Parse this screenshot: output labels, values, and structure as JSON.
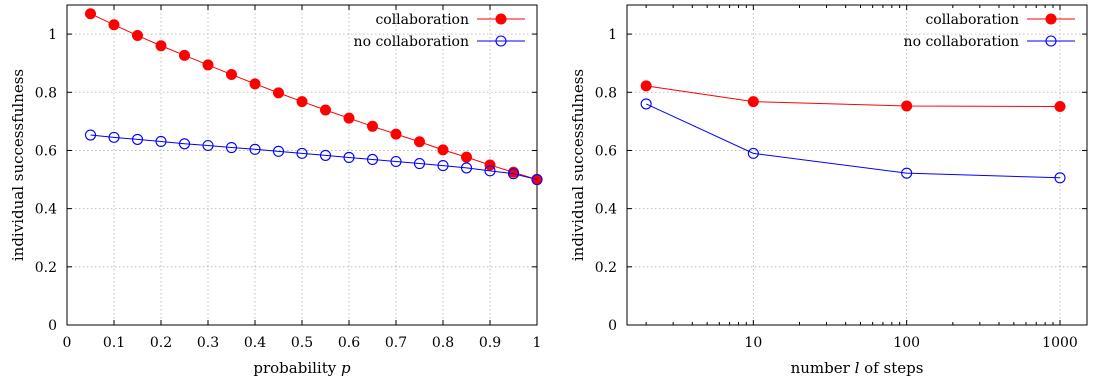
{
  "colors": {
    "collaboration": "#ff0000",
    "no_collaboration": "#0000ff"
  },
  "chart_data": [
    {
      "type": "line",
      "xlabel_prefix": "probability ",
      "xlabel_var": "p",
      "xlabel_suffix": "",
      "ylabel": "individual successfulness",
      "xscale": "linear",
      "xlim": [
        0,
        1
      ],
      "ylim": [
        0,
        1.1
      ],
      "xticks": [
        0,
        0.1,
        0.2,
        0.3,
        0.4,
        0.5,
        0.6,
        0.7,
        0.8,
        0.9,
        1
      ],
      "xtick_labels": [
        "0",
        "0.1",
        "0.2",
        "0.3",
        "0.4",
        "0.5",
        "0.6",
        "0.7",
        "0.8",
        "0.9",
        "1"
      ],
      "yticks": [
        0,
        0.2,
        0.4,
        0.6,
        0.8,
        1
      ],
      "ytick_labels": [
        "0",
        "0.2",
        "0.4",
        "0.6",
        "0.8",
        "1"
      ],
      "grid": true,
      "legend_position": "top-right",
      "series": [
        {
          "name": "collaboration",
          "marker": "filled-circle",
          "x": [
            0.05,
            0.1,
            0.15,
            0.2,
            0.25,
            0.3,
            0.35,
            0.4,
            0.45,
            0.5,
            0.55,
            0.6,
            0.65,
            0.7,
            0.75,
            0.8,
            0.85,
            0.9,
            0.95,
            1
          ],
          "y": [
            1.07,
            1.032,
            0.995,
            0.96,
            0.927,
            0.894,
            0.861,
            0.829,
            0.798,
            0.768,
            0.739,
            0.711,
            0.683,
            0.656,
            0.63,
            0.602,
            0.577,
            0.55,
            0.525,
            0.5
          ]
        },
        {
          "name": "no collaboration",
          "marker": "open-circle",
          "x": [
            0.05,
            0.1,
            0.15,
            0.2,
            0.25,
            0.3,
            0.35,
            0.4,
            0.45,
            0.5,
            0.55,
            0.6,
            0.65,
            0.7,
            0.75,
            0.8,
            0.85,
            0.9,
            0.95,
            1
          ],
          "y": [
            0.653,
            0.645,
            0.638,
            0.631,
            0.623,
            0.617,
            0.61,
            0.604,
            0.597,
            0.59,
            0.583,
            0.576,
            0.569,
            0.562,
            0.555,
            0.548,
            0.54,
            0.53,
            0.52,
            0.5
          ]
        }
      ]
    },
    {
      "type": "line",
      "xlabel_prefix": "number ",
      "xlabel_var": "l",
      "xlabel_suffix": " of steps",
      "ylabel": "individual successfulness",
      "xscale": "log",
      "xlim": [
        1.5,
        1500
      ],
      "ylim": [
        0,
        1.1
      ],
      "xticks": [
        10,
        100,
        1000
      ],
      "xtick_labels": [
        "10",
        "100",
        "1000"
      ],
      "yticks": [
        0,
        0.2,
        0.4,
        0.6,
        0.8,
        1
      ],
      "ytick_labels": [
        "0",
        "0.2",
        "0.4",
        "0.6",
        "0.8",
        "1"
      ],
      "grid": true,
      "legend_position": "top-right",
      "series": [
        {
          "name": "collaboration",
          "marker": "filled-circle",
          "x": [
            2,
            10,
            100,
            1000
          ],
          "y": [
            0.822,
            0.768,
            0.753,
            0.751
          ]
        },
        {
          "name": "no collaboration",
          "marker": "open-circle",
          "x": [
            2,
            10,
            100,
            1000
          ],
          "y": [
            0.76,
            0.59,
            0.522,
            0.506
          ]
        }
      ]
    }
  ]
}
